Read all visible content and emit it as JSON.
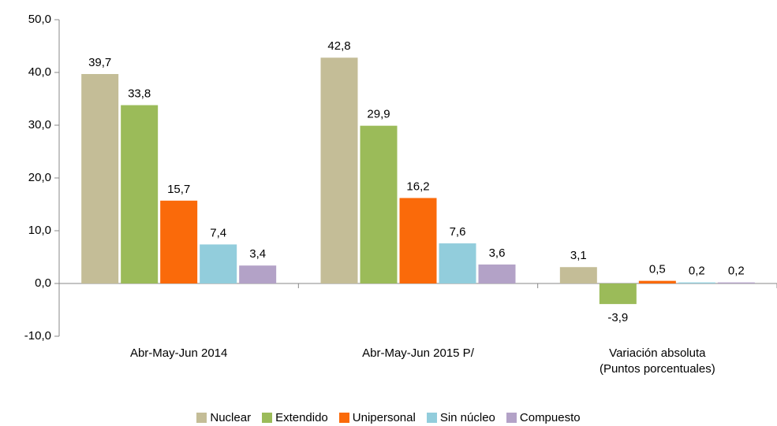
{
  "chart_data": {
    "type": "bar",
    "categories": [
      "Abr-May-Jun 2014",
      "Abr-May-Jun 2015 P/",
      "Variación absoluta\n(Puntos porcentuales)"
    ],
    "series": [
      {
        "name": "Nuclear",
        "color": "#c4bd97",
        "values": [
          39.7,
          42.8,
          3.1
        ],
        "value_labels": [
          "39,7",
          "42,8",
          "3,1"
        ]
      },
      {
        "name": "Extendido",
        "color": "#9bbb59",
        "values": [
          33.8,
          29.9,
          -3.9
        ],
        "value_labels": [
          "33,8",
          "29,9",
          "-3,9"
        ]
      },
      {
        "name": "Unipersonal",
        "color": "#fa6a0a",
        "values": [
          15.7,
          16.2,
          0.5
        ],
        "value_labels": [
          "15,7",
          "16,2",
          "0,5"
        ]
      },
      {
        "name": "Sin núcleo",
        "color": "#92cddc",
        "values": [
          7.4,
          7.6,
          0.2
        ],
        "value_labels": [
          "7,4",
          "7,6",
          "0,2"
        ]
      },
      {
        "name": "Compuesto",
        "color": "#b3a2c7",
        "values": [
          3.4,
          3.6,
          0.2
        ],
        "value_labels": [
          "3,4",
          "3,6",
          "0,2"
        ]
      }
    ],
    "ylim": [
      -10,
      50
    ],
    "yticks": [
      {
        "value": -10,
        "label": "-10,0"
      },
      {
        "value": 0,
        "label": "0,0"
      },
      {
        "value": 10,
        "label": "10,0"
      },
      {
        "value": 20,
        "label": "20,0"
      },
      {
        "value": 30,
        "label": "30,0"
      },
      {
        "value": 40,
        "label": "40,0"
      },
      {
        "value": 50,
        "label": "50,0"
      }
    ],
    "legend": "bottom"
  }
}
